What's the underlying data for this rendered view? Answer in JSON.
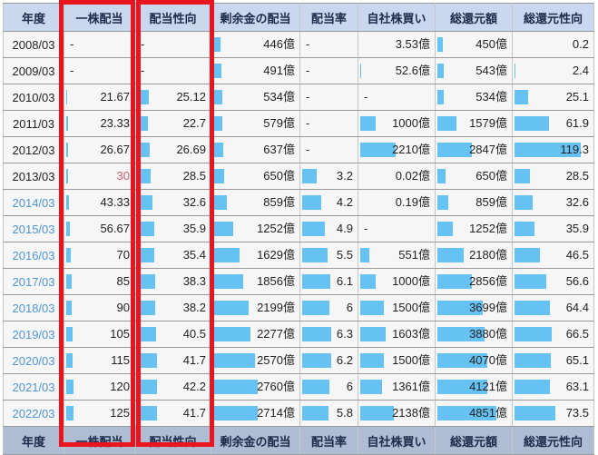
{
  "colors": {
    "bar": "#66c2f3",
    "header_bg": "#c9d8ee",
    "footer_bg": "#aebcd4",
    "row_bg": "#f6f6f7",
    "highlight_border": "#e8151e",
    "year_link": "#4e95d4",
    "negative_value": "#c9606b"
  },
  "table": {
    "columns": [
      {
        "key": "year",
        "label": "年度"
      },
      {
        "key": "dps",
        "label": "一株配当",
        "highlighted": true
      },
      {
        "key": "payout-ratio",
        "label": "配当性向",
        "highlighted": true
      },
      {
        "key": "surplus-dividend",
        "label": "剰余金の配当"
      },
      {
        "key": "dividend-rate",
        "label": "配当率"
      },
      {
        "key": "buyback",
        "label": "自社株買い"
      },
      {
        "key": "total-return",
        "label": "総還元額"
      },
      {
        "key": "total-return-ratio",
        "label": "総還元性向"
      }
    ],
    "rows": [
      {
        "year": "2008/03",
        "year_link": false,
        "cells": [
          {
            "t": "-",
            "b": 0
          },
          {
            "t": "-",
            "b": 0
          },
          {
            "t": "446億",
            "b": 8.2
          },
          {
            "t": "-",
            "b": 0
          },
          {
            "t": "3.53億",
            "b": 0
          },
          {
            "t": "450億",
            "b": 7.2
          },
          {
            "t": "0.2",
            "b": 0
          }
        ]
      },
      {
        "year": "2009/03",
        "year_link": false,
        "cells": [
          {
            "t": "-",
            "b": 0
          },
          {
            "t": "-",
            "b": 0
          },
          {
            "t": "491億",
            "b": 9.1
          },
          {
            "t": "-",
            "b": 0
          },
          {
            "t": "52.6億",
            "b": 1.1
          },
          {
            "t": "543億",
            "b": 8.7
          },
          {
            "t": "2.4",
            "b": 1.6
          }
        ]
      },
      {
        "year": "2010/03",
        "year_link": false,
        "cells": [
          {
            "t": "21.67",
            "b": 1.8
          },
          {
            "t": "25.12",
            "b": 16.0
          },
          {
            "t": "534億",
            "b": 9.9
          },
          {
            "t": "-",
            "b": 0
          },
          {
            "t": "-",
            "b": 0
          },
          {
            "t": "534億",
            "b": 8.5
          },
          {
            "t": "25.1",
            "b": 17.2
          }
        ]
      },
      {
        "year": "2011/03",
        "year_link": false,
        "cells": [
          {
            "t": "23.33",
            "b": 2.0
          },
          {
            "t": "22.7",
            "b": 14.4
          },
          {
            "t": "579億",
            "b": 10.7
          },
          {
            "t": "-",
            "b": 0
          },
          {
            "t": "1000億",
            "b": 20.8
          },
          {
            "t": "1579億",
            "b": 25.3
          },
          {
            "t": "61.9",
            "b": 42.5
          }
        ]
      },
      {
        "year": "2012/03",
        "year_link": false,
        "cells": [
          {
            "t": "26.67",
            "b": 2.2
          },
          {
            "t": "26.69",
            "b": 17.0
          },
          {
            "t": "637億",
            "b": 11.8
          },
          {
            "t": "-",
            "b": 0
          },
          {
            "t": "2210億",
            "b": 45.9
          },
          {
            "t": "2847億",
            "b": 45.6
          },
          {
            "t": "119.3",
            "b": 81.9
          }
        ]
      },
      {
        "year": "2013/03",
        "year_link": false,
        "cells": [
          {
            "t": "30",
            "b": 2.5,
            "red": true
          },
          {
            "t": "28.5",
            "b": 18.1
          },
          {
            "t": "650億",
            "b": 12.0
          },
          {
            "t": "3.2",
            "b": 25.8
          },
          {
            "t": "0.02億",
            "b": 0
          },
          {
            "t": "650億",
            "b": 10.4
          },
          {
            "t": "28.5",
            "b": 19.6
          }
        ]
      },
      {
        "year": "2014/03",
        "year_link": true,
        "cells": [
          {
            "t": "43.33",
            "b": 3.6
          },
          {
            "t": "32.6",
            "b": 20.7
          },
          {
            "t": "859億",
            "b": 15.9
          },
          {
            "t": "4.2",
            "b": 33.9
          },
          {
            "t": "0.19億",
            "b": 0
          },
          {
            "t": "859億",
            "b": 13.7
          },
          {
            "t": "32.6",
            "b": 22.4
          }
        ]
      },
      {
        "year": "2015/03",
        "year_link": true,
        "cells": [
          {
            "t": "56.67",
            "b": 4.8
          },
          {
            "t": "35.9",
            "b": 22.8
          },
          {
            "t": "1252億",
            "b": 23.1
          },
          {
            "t": "4.9",
            "b": 39.5
          },
          {
            "t": "-",
            "b": 0
          },
          {
            "t": "1252億",
            "b": 20.0
          },
          {
            "t": "35.9",
            "b": 24.7
          }
        ]
      },
      {
        "year": "2016/03",
        "year_link": true,
        "cells": [
          {
            "t": "70",
            "b": 5.9
          },
          {
            "t": "35.4",
            "b": 22.5
          },
          {
            "t": "1629億",
            "b": 30.1
          },
          {
            "t": "5.5",
            "b": 44.3
          },
          {
            "t": "551億",
            "b": 11.4
          },
          {
            "t": "2180億",
            "b": 34.9
          },
          {
            "t": "46.5",
            "b": 31.9
          }
        ]
      },
      {
        "year": "2017/03",
        "year_link": true,
        "cells": [
          {
            "t": "85",
            "b": 7.2
          },
          {
            "t": "38.3",
            "b": 24.4
          },
          {
            "t": "1856億",
            "b": 34.3
          },
          {
            "t": "6.1",
            "b": 49.2
          },
          {
            "t": "1000億",
            "b": 20.8
          },
          {
            "t": "2856億",
            "b": 45.7
          },
          {
            "t": "56.6",
            "b": 38.9
          }
        ]
      },
      {
        "year": "2018/03",
        "year_link": true,
        "cells": [
          {
            "t": "90",
            "b": 7.6
          },
          {
            "t": "38.2",
            "b": 24.3
          },
          {
            "t": "2199億",
            "b": 40.6
          },
          {
            "t": "6",
            "b": 48.4
          },
          {
            "t": "1500億",
            "b": 31.1
          },
          {
            "t": "3699億",
            "b": 59.2
          },
          {
            "t": "64.4",
            "b": 44.2
          }
        ]
      },
      {
        "year": "2019/03",
        "year_link": true,
        "cells": [
          {
            "t": "105",
            "b": 8.8
          },
          {
            "t": "40.5",
            "b": 25.7
          },
          {
            "t": "2277億",
            "b": 42.1
          },
          {
            "t": "6.3",
            "b": 50.8
          },
          {
            "t": "1603億",
            "b": 33.3
          },
          {
            "t": "3880億",
            "b": 62.1
          },
          {
            "t": "66.5",
            "b": 45.7
          }
        ]
      },
      {
        "year": "2020/03",
        "year_link": true,
        "cells": [
          {
            "t": "115",
            "b": 9.7
          },
          {
            "t": "41.7",
            "b": 26.5
          },
          {
            "t": "2570億",
            "b": 47.5
          },
          {
            "t": "6.2",
            "b": 50.0
          },
          {
            "t": "1500億",
            "b": 31.1
          },
          {
            "t": "4070億",
            "b": 65.1
          },
          {
            "t": "65.1",
            "b": 44.7
          }
        ]
      },
      {
        "year": "2021/03",
        "year_link": true,
        "cells": [
          {
            "t": "120",
            "b": 10.1
          },
          {
            "t": "42.2",
            "b": 26.8
          },
          {
            "t": "2760億",
            "b": 51.0
          },
          {
            "t": "6",
            "b": 48.4
          },
          {
            "t": "1361億",
            "b": 28.3
          },
          {
            "t": "4121億",
            "b": 65.9
          },
          {
            "t": "63.1",
            "b": 43.3
          }
        ]
      },
      {
        "year": "2022/03",
        "year_link": true,
        "cells": [
          {
            "t": "125",
            "b": 10.5
          },
          {
            "t": "41.7",
            "b": 26.5
          },
          {
            "t": "2714億",
            "b": 50.2
          },
          {
            "t": "5.8",
            "b": 46.7
          },
          {
            "t": "2138億",
            "b": 44.4
          },
          {
            "t": "4851億",
            "b": 77.6
          },
          {
            "t": "73.5",
            "b": 50.5
          }
        ]
      }
    ]
  }
}
